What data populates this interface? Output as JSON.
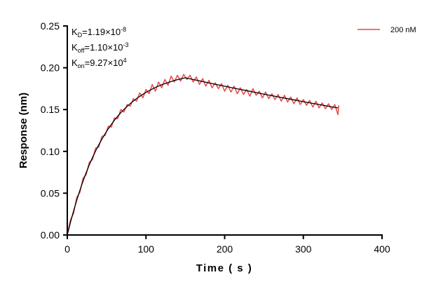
{
  "chart_data": {
    "type": "line",
    "title": "",
    "xlabel": "Time ( s )",
    "ylabel": "Response (nm)",
    "xlim": [
      0,
      400
    ],
    "ylim": [
      0,
      0.25
    ],
    "xticks": [
      "0",
      "100",
      "200",
      "300",
      "400"
    ],
    "yticks": [
      "0.00",
      "0.05",
      "0.10",
      "0.15",
      "0.20",
      "0.25"
    ],
    "grid": false,
    "legend_position": "top-right",
    "annotations": {
      "kd": {
        "label": "K",
        "sub": "D",
        "value": "=1.19×10",
        "exp": "-8"
      },
      "koff": {
        "label": "K",
        "sub": "off",
        "value": "=1.10×10",
        "exp": "-3"
      },
      "kon": {
        "label": "K",
        "sub": "on",
        "value": "=9.27×10",
        "exp": "4"
      }
    },
    "series": [
      {
        "name": "200 nM",
        "color": "#e8474a",
        "x": [
          0,
          4,
          8,
          12,
          16,
          20,
          24,
          28,
          32,
          36,
          40,
          44,
          48,
          52,
          56,
          60,
          64,
          68,
          72,
          76,
          80,
          84,
          88,
          92,
          96,
          100,
          104,
          108,
          112,
          116,
          120,
          124,
          128,
          132,
          136,
          140,
          144,
          148,
          152,
          156,
          160,
          164,
          168,
          172,
          176,
          180,
          184,
          188,
          192,
          196,
          200,
          204,
          208,
          212,
          216,
          220,
          224,
          228,
          232,
          236,
          240,
          244,
          248,
          252,
          256,
          260,
          264,
          268,
          272,
          276,
          280,
          284,
          288,
          292,
          296,
          300,
          304,
          308,
          312,
          316,
          320,
          324,
          328,
          332,
          336,
          340,
          344,
          345
        ],
        "y": [
          0.001,
          0.018,
          0.026,
          0.045,
          0.051,
          0.068,
          0.072,
          0.087,
          0.09,
          0.104,
          0.105,
          0.118,
          0.119,
          0.13,
          0.129,
          0.14,
          0.139,
          0.15,
          0.147,
          0.156,
          0.154,
          0.163,
          0.16,
          0.17,
          0.164,
          0.174,
          0.169,
          0.18,
          0.172,
          0.183,
          0.176,
          0.186,
          0.179,
          0.19,
          0.183,
          0.191,
          0.184,
          0.192,
          0.186,
          0.191,
          0.183,
          0.189,
          0.18,
          0.187,
          0.178,
          0.185,
          0.176,
          0.182,
          0.175,
          0.181,
          0.172,
          0.179,
          0.171,
          0.178,
          0.169,
          0.176,
          0.168,
          0.174,
          0.166,
          0.175,
          0.167,
          0.172,
          0.164,
          0.171,
          0.163,
          0.169,
          0.162,
          0.168,
          0.16,
          0.167,
          0.159,
          0.165,
          0.157,
          0.164,
          0.156,
          0.162,
          0.155,
          0.161,
          0.153,
          0.16,
          0.152,
          0.158,
          0.151,
          0.157,
          0.15,
          0.156,
          0.144,
          0.155
        ]
      },
      {
        "color": "#000000",
        "x": [
          0,
          4,
          8,
          12,
          16,
          20,
          24,
          28,
          32,
          36,
          40,
          44,
          48,
          52,
          56,
          60,
          64,
          68,
          72,
          76,
          80,
          84,
          88,
          92,
          96,
          100,
          104,
          108,
          112,
          116,
          120,
          124,
          128,
          132,
          136,
          140,
          144,
          148,
          150,
          160,
          170,
          180,
          190,
          200,
          210,
          220,
          230,
          240,
          250,
          260,
          270,
          280,
          290,
          300,
          310,
          320,
          330,
          340,
          344
        ],
        "y": [
          0,
          0.015,
          0.0289,
          0.0416,
          0.0535,
          0.0644,
          0.0745,
          0.0839,
          0.0926,
          0.1005,
          0.1079,
          0.1147,
          0.121,
          0.1269,
          0.1323,
          0.1373,
          0.1419,
          0.1462,
          0.1501,
          0.1537,
          0.1571,
          0.1602,
          0.1631,
          0.1658,
          0.1683,
          0.1705,
          0.1726,
          0.1746,
          0.1764,
          0.1781,
          0.1796,
          0.181,
          0.1823,
          0.1835,
          0.1847,
          0.1857,
          0.1867,
          0.1876,
          0.188,
          0.1859,
          0.1839,
          0.1819,
          0.1799,
          0.1779,
          0.176,
          0.1741,
          0.1722,
          0.1703,
          0.1684,
          0.1666,
          0.1648,
          0.163,
          0.1612,
          0.1594,
          0.1577,
          0.156,
          0.1543,
          0.1526,
          0.1519
        ]
      }
    ]
  }
}
